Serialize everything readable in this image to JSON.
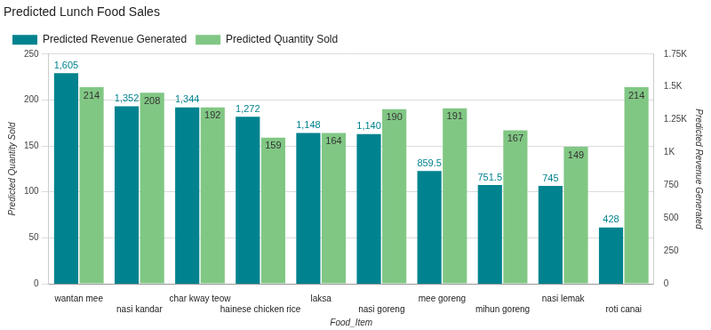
{
  "chart_data": {
    "type": "bar",
    "title": "Predicted Lunch Food Sales",
    "x_label": "Food_Item",
    "y_label": "Predicted Quantity Sold",
    "y2_label": "Predicted Revenue Generated",
    "categories": [
      "wantan mee",
      "nasi kandar",
      "char kway teow",
      "hainese chicken rice",
      "laksa",
      "nasi goreng",
      "mee goreng",
      "mihun goreng",
      "nasi lemak",
      "roti canai"
    ],
    "series": [
      {
        "name": "Predicted Revenue Generated",
        "color": "#00838f",
        "axis": "y2",
        "values": [
          1605,
          1352,
          1344,
          1272,
          1148,
          1140,
          859.5,
          751.5,
          745,
          428
        ],
        "value_labels": [
          "1,605",
          "1,352",
          "1,344",
          "1,272",
          "1,148",
          "1,140",
          "859.5",
          "751.5",
          "745",
          "428"
        ]
      },
      {
        "name": "Predicted Quantity Sold",
        "color": "#81c784",
        "values": [
          214,
          208,
          192,
          159,
          164,
          190,
          191,
          167,
          149,
          214
        ]
      }
    ],
    "ylim": [
      0,
      250
    ],
    "yticks": [
      0,
      50,
      100,
      150,
      200,
      250
    ],
    "y2lim": [
      0,
      1750
    ],
    "y2ticks": [
      0,
      250,
      500,
      750,
      {
        "value": 1000,
        "label": "1K"
      },
      {
        "value": 1250,
        "label": "1.25K"
      },
      {
        "value": 1500,
        "label": "1.5K"
      },
      {
        "value": 1750,
        "label": "1.75K"
      }
    ],
    "grid": true,
    "legend": "top-left",
    "data_labels": true
  }
}
